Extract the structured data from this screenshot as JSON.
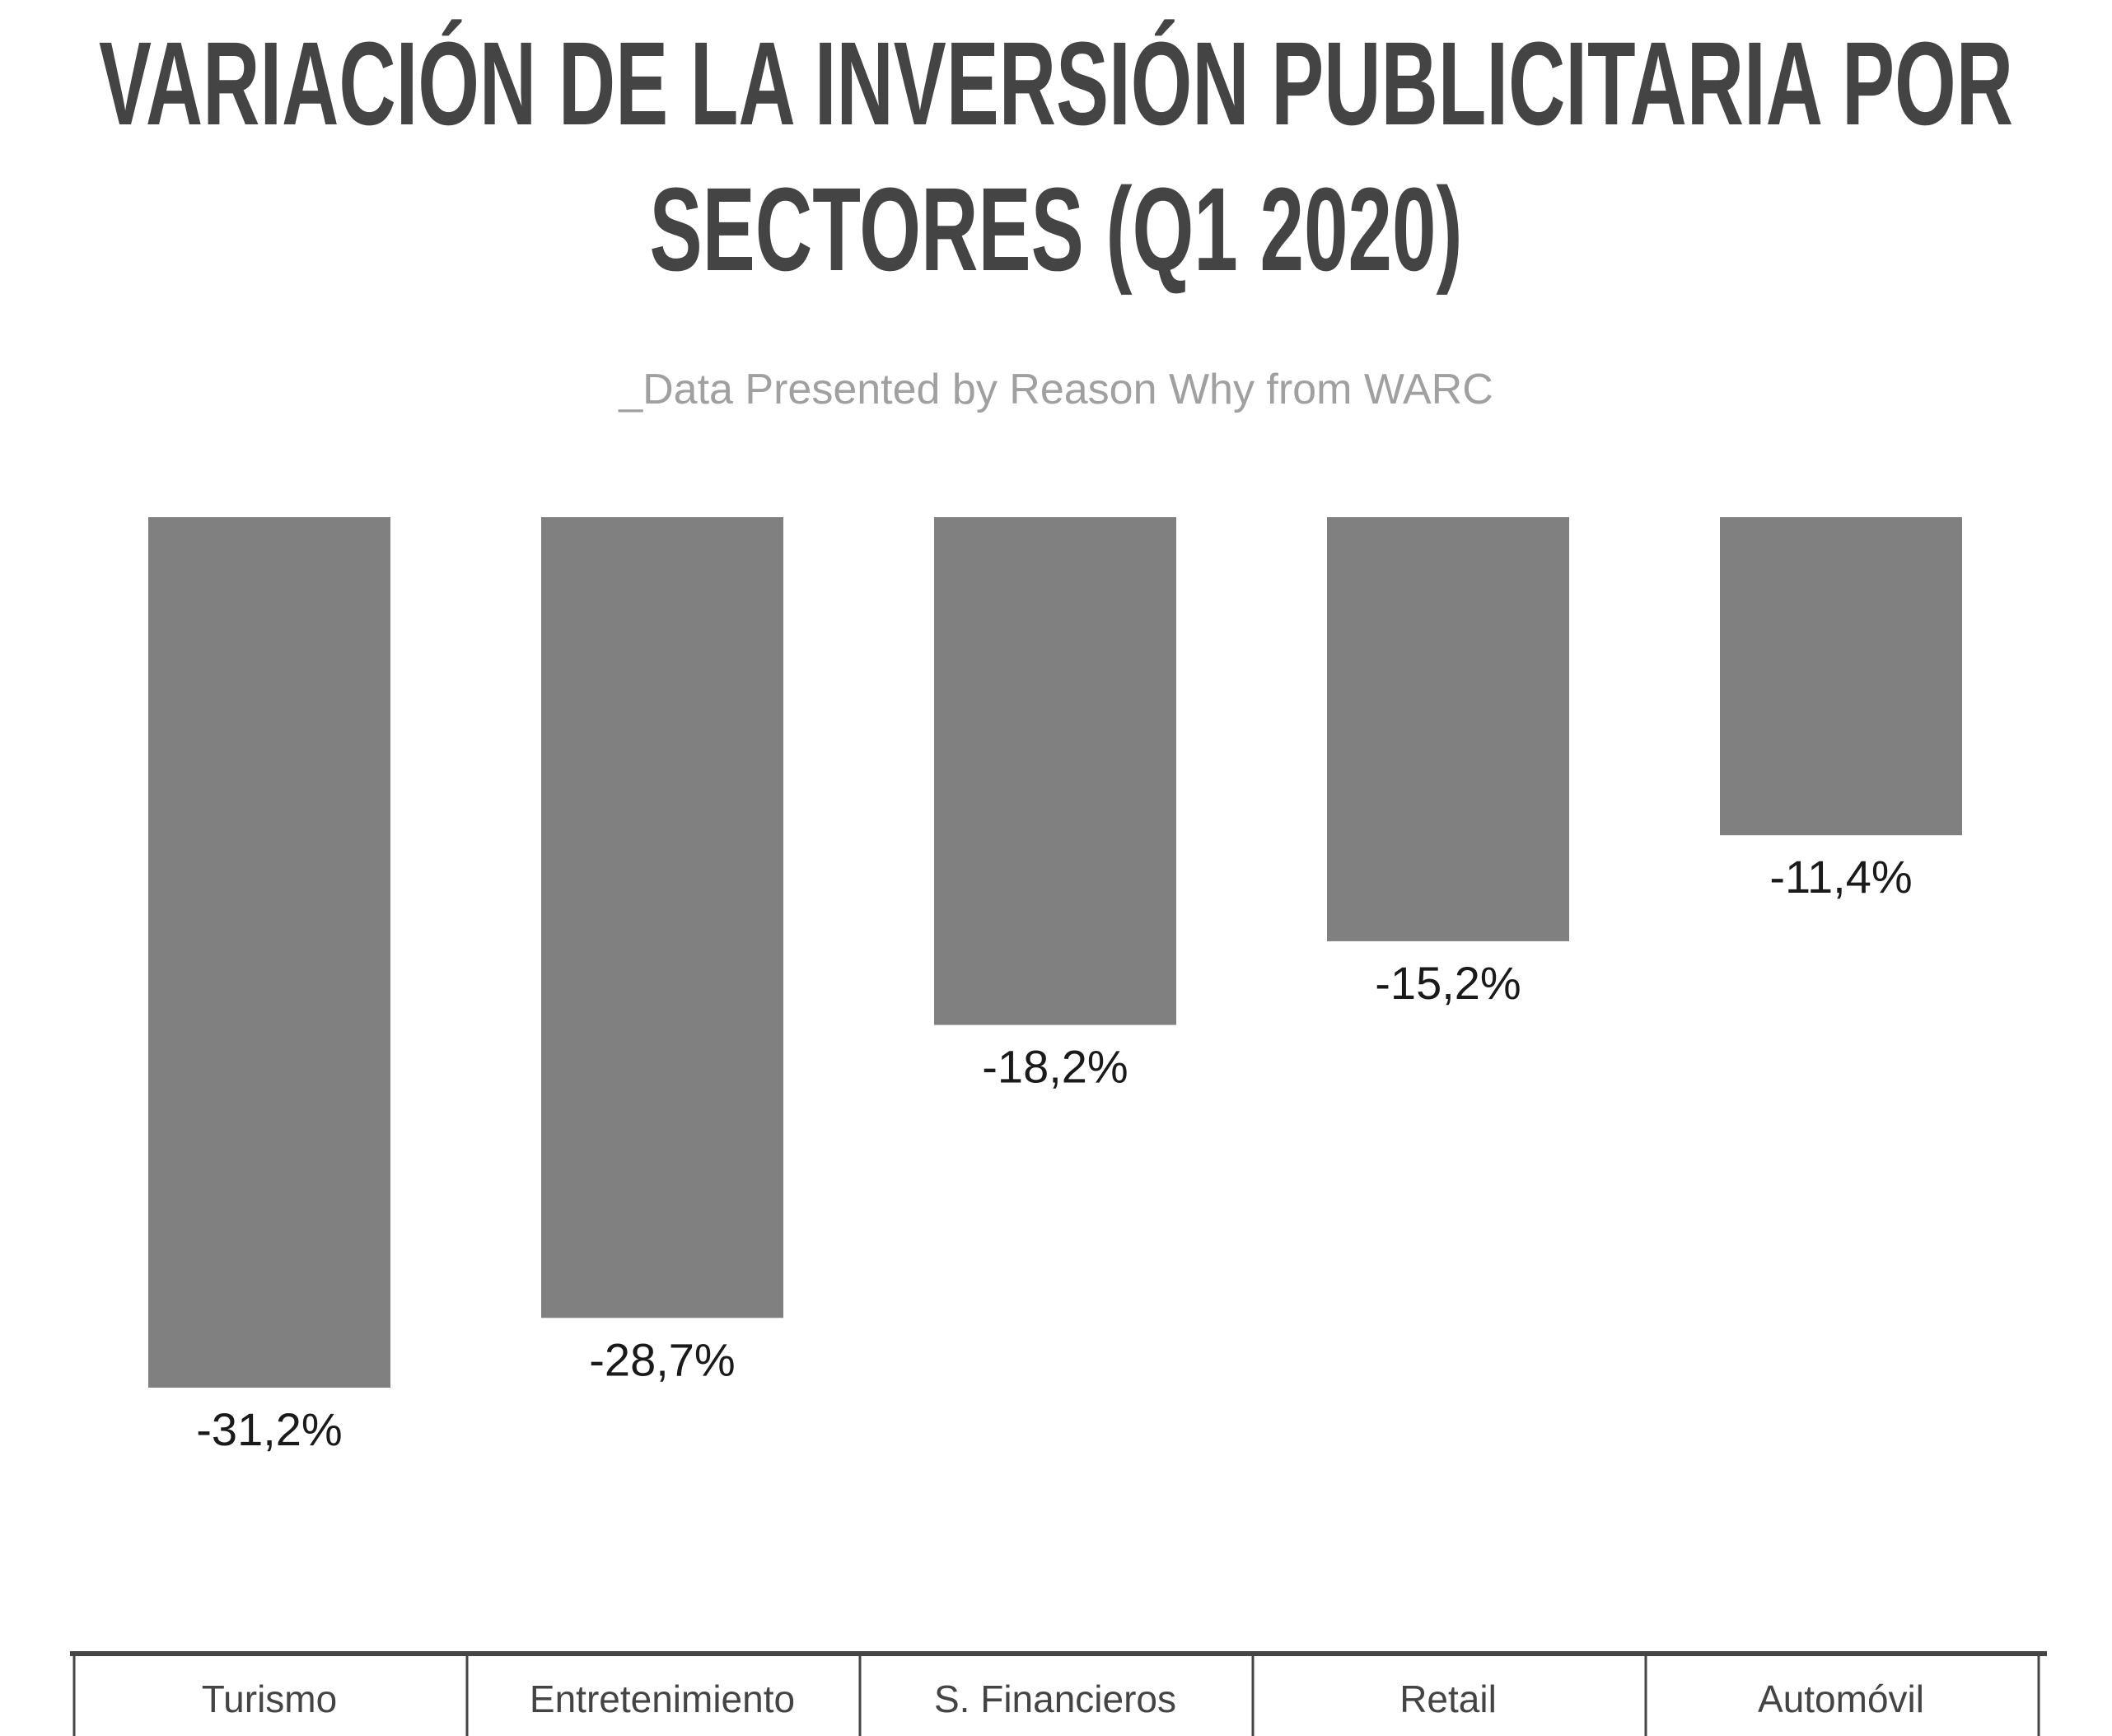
{
  "chart_data": {
    "type": "bar",
    "title": [
      "VARIACIÓN DE LA INVERSIÓN PUBLICITARIA POR",
      "SECTORES (Q1 2020)"
    ],
    "subtitle": "_Data Presented by Reason Why from WARC",
    "categories": [
      "Turismo",
      "Entretenimiento",
      "S. Financieros",
      "Retail",
      "Automóvil"
    ],
    "values": [
      -31.2,
      -28.7,
      -18.2,
      -15.2,
      -11.4
    ],
    "data_labels": [
      "-31,2%",
      "-28,7%",
      "-18,2%",
      "-15,2%",
      "-11,4%"
    ],
    "xlabel": "",
    "ylabel": "",
    "grid": false,
    "legend": "none",
    "bar_color": "#808080",
    "line_color": "#444444"
  }
}
